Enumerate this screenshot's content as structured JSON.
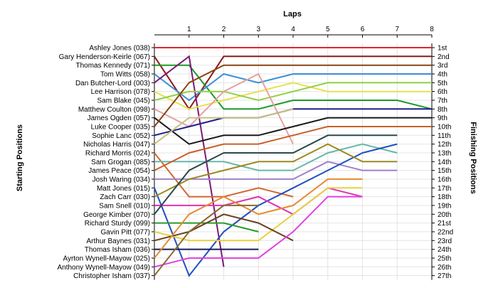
{
  "chart_data": {
    "type": "line",
    "title": "",
    "xlabel": "Laps",
    "ylabel_left": "Starting Positions",
    "ylabel_right": "Finishing Positions",
    "x_ticks": [
      1,
      2,
      3,
      4,
      5,
      6,
      7,
      8
    ],
    "xlim": [
      0,
      8
    ],
    "ylim": [
      1,
      27
    ],
    "grid": true,
    "legend": "none",
    "finishing_labels": [
      "1st",
      "2nd",
      "3rd",
      "4th",
      "5th",
      "6th",
      "7th",
      "8th",
      "9th",
      "10th",
      "11th",
      "12th",
      "13th",
      "14th",
      "15th",
      "16th",
      "17th",
      "18th",
      "19th",
      "20th",
      "21st",
      "22nd",
      "23rd",
      "24th",
      "25th",
      "26th",
      "27th"
    ],
    "series": [
      {
        "name": "Ashley Jones (038)",
        "color": "#e0262c",
        "positions": [
          1,
          1,
          1,
          1,
          1,
          1,
          1,
          1,
          1
        ]
      },
      {
        "name": "Gary Henderson-Keirle (067)",
        "color": "#8b1a1a",
        "positions": [
          2,
          8,
          2,
          2,
          2,
          2,
          2,
          2,
          2
        ]
      },
      {
        "name": "Thomas Kennedy (071)",
        "color": "#1a9a2a",
        "positions": [
          3,
          3,
          8,
          8,
          7,
          7,
          7,
          7,
          8
        ]
      },
      {
        "name": "Tom Witts (058)",
        "color": "#3a8fd8",
        "positions": [
          4,
          7,
          4,
          5,
          4,
          4,
          4,
          4,
          4
        ]
      },
      {
        "name": "Dan Butcher-Lord (003)",
        "color": "#7a1a7a",
        "positions": [
          5,
          2,
          26
        ]
      },
      {
        "name": "Lee Harrison (078)",
        "color": "#e8e050",
        "positions": [
          6,
          8,
          7,
          6,
          5,
          6,
          6,
          6,
          6
        ]
      },
      {
        "name": "Sam Blake (045)",
        "color": "#90d040",
        "positions": [
          7,
          6,
          6,
          7,
          6,
          5,
          5,
          5,
          5
        ]
      },
      {
        "name": "Matthew Coulton (098)",
        "color": "#e8a0a0",
        "positions": [
          8,
          10,
          6,
          4,
          12
        ]
      },
      {
        "name": "James Ogden (057)",
        "color": "#1a1a1a",
        "positions": [
          9,
          12,
          11,
          11,
          10,
          9,
          9,
          9,
          9
        ]
      },
      {
        "name": "Luke Cooper (035)",
        "color": "#8b4513",
        "positions": [
          10,
          5,
          3,
          3,
          3,
          3,
          3,
          3,
          3
        ]
      },
      {
        "name": "Sophie Lanc (052)",
        "color": "#1c1f8a",
        "positions": [
          11,
          10,
          9,
          9,
          8,
          8,
          8,
          8,
          8
        ]
      },
      {
        "name": "Nicholas Harris (047)",
        "color": "#c8c080",
        "positions": [
          12,
          9,
          9,
          9,
          8
        ]
      },
      {
        "name": "Richard Morris (024)",
        "color": "#d06830",
        "positions": [
          13,
          18,
          18,
          17,
          18
        ]
      },
      {
        "name": "Sam Grogan (085)",
        "color": "#66b8a8",
        "positions": [
          14,
          14,
          14,
          15,
          15,
          13,
          12,
          13
        ]
      },
      {
        "name": "James Peace (054)",
        "color": "#c8602a",
        "positions": [
          15,
          13,
          12,
          12,
          11,
          10,
          10,
          10,
          10
        ]
      },
      {
        "name": "Josh Waring (034)",
        "color": "#a080c8",
        "positions": [
          16,
          16,
          16,
          16,
          16,
          14,
          15,
          15
        ]
      },
      {
        "name": "Matt Jones (015)",
        "color": "#2050c0",
        "positions": [
          17,
          27,
          22,
          19,
          17,
          15,
          13,
          12
        ]
      },
      {
        "name": "Zach Carr (030)",
        "color": "#9a8a20",
        "positions": [
          18,
          16,
          15,
          14,
          14,
          12,
          14,
          14
        ]
      },
      {
        "name": "Sam Snell (010)",
        "color": "#e030b0",
        "positions": [
          19,
          19,
          19,
          18,
          20,
          17,
          18
        ]
      },
      {
        "name": "George Kimber (070)",
        "color": "#2a4a4a",
        "positions": [
          20,
          15,
          13,
          13,
          13,
          11,
          11,
          11
        ]
      },
      {
        "name": "Richard Sturdy (099)",
        "color": "#2a9a2a",
        "positions": [
          21,
          21,
          21,
          22
        ]
      },
      {
        "name": "Gavin Pitt (077)",
        "color": "#e8d040",
        "positions": [
          22,
          23,
          23,
          23,
          20,
          17,
          17
        ]
      },
      {
        "name": "Arthur Baynes (031)",
        "color": "#6a4020",
        "positions": [
          23,
          22,
          20,
          21,
          23
        ]
      },
      {
        "name": "Thomas Isham (036)",
        "color": "#1a1a5a",
        "positions": [
          24,
          24,
          24,
          24
        ]
      },
      {
        "name": "Ayrton Wynell-Mayow (025)",
        "color": "#e88a30",
        "positions": [
          25,
          20,
          18,
          20,
          19,
          16,
          16
        ]
      },
      {
        "name": "Anthony Wynell-Mayow (049)",
        "color": "#e040e0",
        "positions": [
          26,
          25,
          25,
          25,
          22,
          18,
          18
        ]
      },
      {
        "name": "Christopher Isham (037)",
        "color": "#8a6a30",
        "positions": [
          27,
          22,
          19,
          19
        ]
      }
    ]
  }
}
